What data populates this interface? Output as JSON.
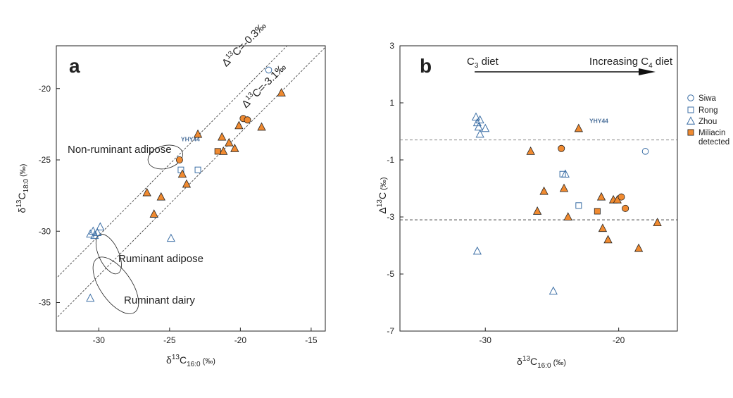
{
  "colors": {
    "orange": "#f08a30",
    "orange_edge": "#222222",
    "blue_open": "#3b6ea5",
    "axis": "#222222",
    "ref_line": "#444444"
  },
  "panel_a": {
    "letter": "a",
    "xlabel": {
      "base": "δ",
      "sup": "13",
      "mid": "C",
      "sub": "16:0",
      "unit": " (‰)"
    },
    "ylabel": {
      "base": "δ",
      "sup": "13",
      "mid": "C",
      "sub": "18:0",
      "unit": " (‰)"
    },
    "xlim": [
      -33,
      -14
    ],
    "ylim": [
      -37,
      -17
    ],
    "xticks": [
      -30,
      -25,
      -20,
      -15
    ],
    "yticks": [
      -20,
      -25,
      -30,
      -35
    ],
    "lines": [
      {
        "offset": -0.3,
        "text_pre": "Δ",
        "sup": "13",
        "text_post": "C=-0.3‰"
      },
      {
        "offset": -3.1,
        "text_pre": "Δ",
        "sup": "13",
        "text_post": "C=-3.1‰"
      }
    ],
    "regions": [
      {
        "name": "Non-ruminant adipose",
        "cx": -25.3,
        "cy": -24.8,
        "rx": 1.25,
        "ry": 0.8,
        "angle": 15
      },
      {
        "name": "Ruminant adipose",
        "cx": -29.3,
        "cy": -31.6,
        "rx": 0.7,
        "ry": 1.5,
        "angle": 25
      },
      {
        "name": "Ruminant dairy",
        "cx": -28.8,
        "cy": -33.8,
        "rx": 1.1,
        "ry": 2.3,
        "angle": 35
      }
    ],
    "annotation": {
      "text": "YHY44",
      "x": -24.2,
      "y": -23.7
    }
  },
  "panel_b": {
    "letter": "b",
    "xlabel": {
      "base": "δ",
      "sup": "13",
      "mid": "C",
      "sub": "16:0",
      "unit": " (‰)"
    },
    "ylabel": {
      "base": "Δ",
      "sup": "13",
      "mid": "C",
      "sub": "",
      "unit": " (‰)"
    },
    "xlim": [
      -36.4,
      -15.6
    ],
    "ylim": [
      -7,
      3
    ],
    "xticks": [
      -30,
      -20
    ],
    "yticks": [
      3,
      1,
      -1,
      -3,
      -5,
      -7
    ],
    "hlines": [
      -0.3,
      -3.1
    ],
    "diet_left": {
      "base": "C",
      "sub": "3",
      "post": " diet"
    },
    "diet_right": {
      "pre": "Increasing C",
      "sub": "4",
      "post": " diet"
    },
    "annotation": {
      "text": "YHY44",
      "x": -22.2,
      "y": 0.2
    },
    "legend": [
      {
        "label": "Siwa",
        "shape": "circle",
        "style": "open"
      },
      {
        "label": "Rong",
        "shape": "square",
        "style": "open"
      },
      {
        "label": "Zhou",
        "shape": "triangle",
        "style": "open"
      },
      {
        "label": "Miliacin detected",
        "shape": "square",
        "style": "filled"
      }
    ]
  },
  "chart_data": [
    {
      "type": "scatter",
      "panel": "a",
      "xlabel": "δ13C16:0 (‰)",
      "ylabel": "δ13C18:0 (‰)",
      "xlim": [
        -33,
        -14
      ],
      "ylim": [
        -37,
        -17
      ],
      "series": [
        {
          "name": "Siwa",
          "points": [
            [
              -18.0,
              -18.7
            ]
          ]
        },
        {
          "name": "Rong",
          "points": [
            [
              -24.2,
              -25.7
            ],
            [
              -23.0,
              -25.7
            ]
          ]
        },
        {
          "name": "Zhou",
          "points": [
            [
              -30.6,
              -30.2
            ],
            [
              -30.4,
              -30.0
            ],
            [
              -30.3,
              -30.3
            ],
            [
              -30.1,
              -30.1
            ],
            [
              -29.9,
              -29.7
            ],
            [
              -24.9,
              -30.5
            ],
            [
              -30.6,
              -34.7
            ]
          ]
        },
        {
          "name": "Miliacin detected (triangle)",
          "points": [
            [
              -26.6,
              -27.3
            ],
            [
              -25.6,
              -27.6
            ],
            [
              -26.1,
              -28.8
            ],
            [
              -24.1,
              -26.0
            ],
            [
              -23.8,
              -26.7
            ],
            [
              -23.0,
              -23.2
            ],
            [
              -21.3,
              -23.4
            ],
            [
              -21.2,
              -24.4
            ],
            [
              -20.8,
              -23.8
            ],
            [
              -20.4,
              -24.2
            ],
            [
              -20.1,
              -22.6
            ],
            [
              -18.5,
              -22.7
            ],
            [
              -17.1,
              -20.3
            ]
          ]
        },
        {
          "name": "Miliacin detected (circle)",
          "points": [
            [
              -24.3,
              -25.0
            ],
            [
              -19.8,
              -22.1
            ],
            [
              -19.5,
              -22.2
            ]
          ]
        },
        {
          "name": "Miliacin detected (square)",
          "points": [
            [
              -21.6,
              -24.4
            ]
          ]
        }
      ]
    },
    {
      "type": "scatter",
      "panel": "b",
      "xlabel": "δ13C16:0 (‰)",
      "ylabel": "Δ13C (‰)",
      "xlim": [
        -36.4,
        -15.6
      ],
      "ylim": [
        -7,
        3
      ],
      "series": [
        {
          "name": "Siwa",
          "points": [
            [
              -18.0,
              -0.7
            ]
          ]
        },
        {
          "name": "Rong",
          "points": [
            [
              -24.2,
              -1.5
            ],
            [
              -23.0,
              -2.6
            ]
          ]
        },
        {
          "name": "Zhou",
          "points": [
            [
              -30.7,
              0.5
            ],
            [
              -30.6,
              0.3
            ],
            [
              -30.4,
              0.4
            ],
            [
              -30.5,
              0.15
            ],
            [
              -30.0,
              0.1
            ],
            [
              -30.4,
              -0.1
            ],
            [
              -24.0,
              -1.5
            ],
            [
              -30.6,
              -4.2
            ],
            [
              -24.9,
              -5.6
            ]
          ]
        },
        {
          "name": "Miliacin detected (triangle)",
          "points": [
            [
              -26.6,
              -0.7
            ],
            [
              -25.6,
              -2.1
            ],
            [
              -26.1,
              -2.8
            ],
            [
              -24.1,
              -2.0
            ],
            [
              -23.8,
              -3.0
            ],
            [
              -23.0,
              0.1
            ],
            [
              -21.3,
              -2.3
            ],
            [
              -21.2,
              -3.4
            ],
            [
              -20.8,
              -3.8
            ],
            [
              -20.4,
              -2.4
            ],
            [
              -20.1,
              -2.4
            ],
            [
              -18.5,
              -4.1
            ],
            [
              -17.1,
              -3.2
            ]
          ]
        },
        {
          "name": "Miliacin detected (circle)",
          "points": [
            [
              -24.3,
              -0.6
            ],
            [
              -19.8,
              -2.3
            ],
            [
              -19.5,
              -2.7
            ]
          ]
        },
        {
          "name": "Miliacin detected (square)",
          "points": [
            [
              -21.6,
              -2.8
            ]
          ]
        }
      ]
    }
  ]
}
